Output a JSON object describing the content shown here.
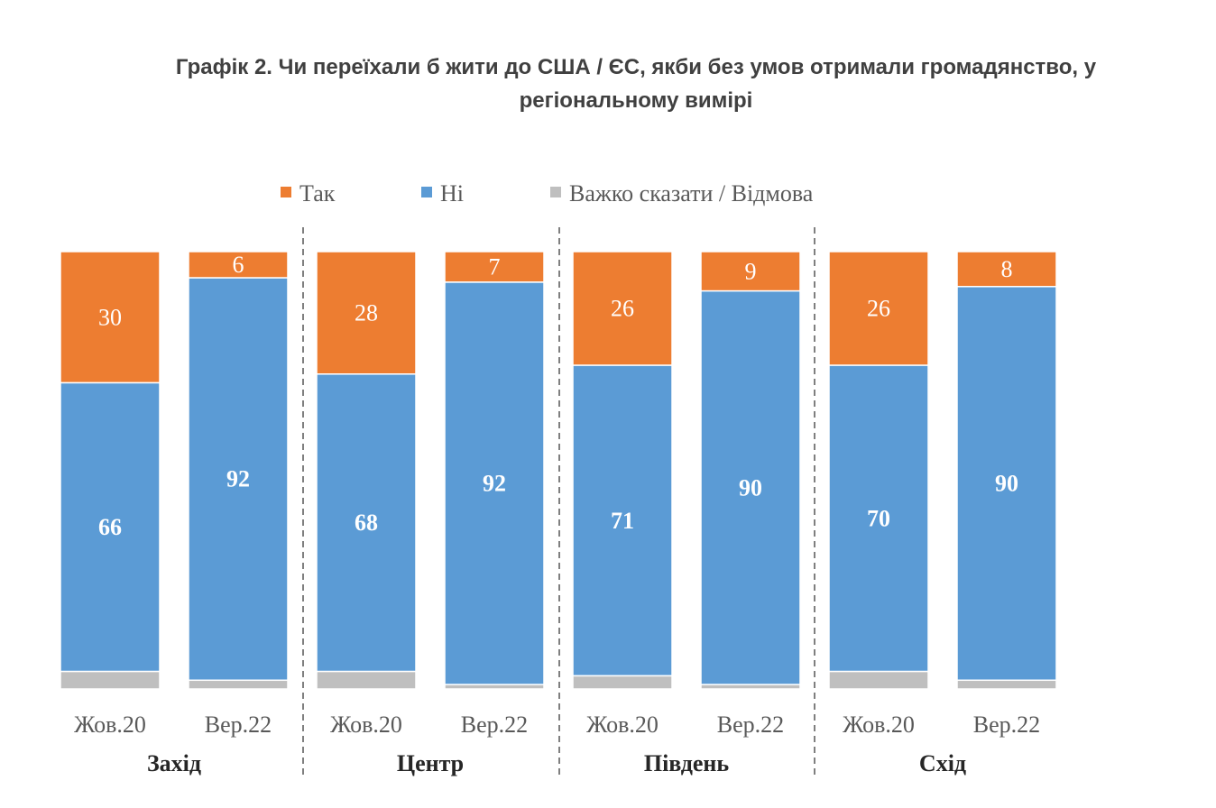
{
  "chart_data": {
    "type": "bar",
    "stacked": true,
    "normalized_percent": true,
    "title_lines": [
      "Графік 2. Чи переїхали б жити до США / ЄС, якби без умов отримали громадянство, у",
      "регіональному вимірі"
    ],
    "legend": {
      "placement": "top",
      "entries": [
        "Так",
        "Ні",
        "Важко сказати / Відмова"
      ]
    },
    "colors": {
      "yes": "#ED7D31",
      "no": "#5B9BD5",
      "hard": "#BFBFBF",
      "divider": "#7F7F7F"
    },
    "groups": [
      {
        "name": "Захід",
        "bars": [
          {
            "category": "Жов.20",
            "yes": 30,
            "no": 66,
            "hard": 4
          },
          {
            "category": "Вер.22",
            "yes": 6,
            "no": 92,
            "hard": 2
          }
        ]
      },
      {
        "name": "Центр",
        "bars": [
          {
            "category": "Жов.20",
            "yes": 28,
            "no": 68,
            "hard": 4
          },
          {
            "category": "Вер.22",
            "yes": 7,
            "no": 92,
            "hard": 1
          }
        ]
      },
      {
        "name": "Південь",
        "bars": [
          {
            "category": "Жов.20",
            "yes": 26,
            "no": 71,
            "hard": 3
          },
          {
            "category": "Вер.22",
            "yes": 9,
            "no": 90,
            "hard": 1
          }
        ]
      },
      {
        "name": "Схід",
        "bars": [
          {
            "category": "Жов.20",
            "yes": 26,
            "no": 70,
            "hard": 4
          },
          {
            "category": "Вер.22",
            "yes": 8,
            "no": 90,
            "hard": 2
          }
        ]
      }
    ],
    "ylim": [
      0,
      100
    ],
    "grid": false
  }
}
